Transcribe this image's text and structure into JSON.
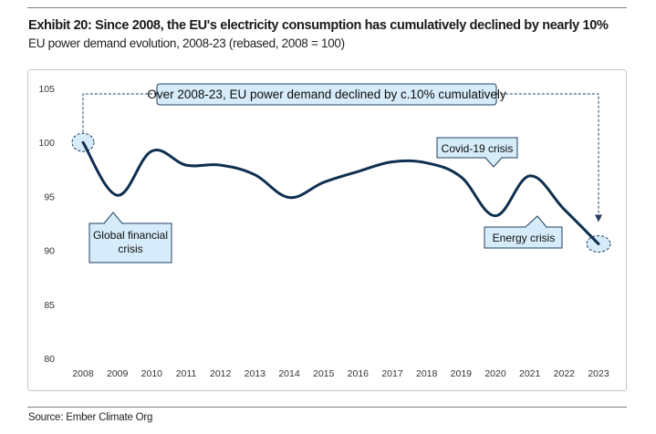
{
  "header": {
    "title": "Exhibit 20: Since 2008, the EU's electricity consumption has cumulatively declined by nearly 10%",
    "subtitle": "EU power demand evolution, 2008-23 (rebased, 2008 = 100)"
  },
  "footer": {
    "source": "Source: Ember Climate Org"
  },
  "colors": {
    "line": "#0e2f4f",
    "callout_fill": "#d6ecfa",
    "callout_stroke": "#1f3f60"
  },
  "chart_data": {
    "type": "line",
    "x": [
      "2008",
      "2009",
      "2010",
      "2011",
      "2012",
      "2013",
      "2014",
      "2015",
      "2016",
      "2017",
      "2018",
      "2019",
      "2020",
      "2021",
      "2022",
      "2023"
    ],
    "series": [
      {
        "values": [
          100,
          95.1,
          99.2,
          97.9,
          97.9,
          97.0,
          94.9,
          96.3,
          97.3,
          98.2,
          98.1,
          96.8,
          93.2,
          96.9,
          93.8,
          90.6
        ]
      }
    ],
    "ylim": [
      80,
      105
    ],
    "yticks": [
      "80",
      "85",
      "90",
      "95",
      "100",
      "105"
    ],
    "grid": false,
    "annotations": {
      "headline": "Over 2008-23, EU power demand declined by c.10% cumulatively",
      "gfc_line1": "Global financial",
      "gfc_line2": "crisis",
      "covid": "Covid-19 crisis",
      "energy": "Energy crisis"
    }
  }
}
